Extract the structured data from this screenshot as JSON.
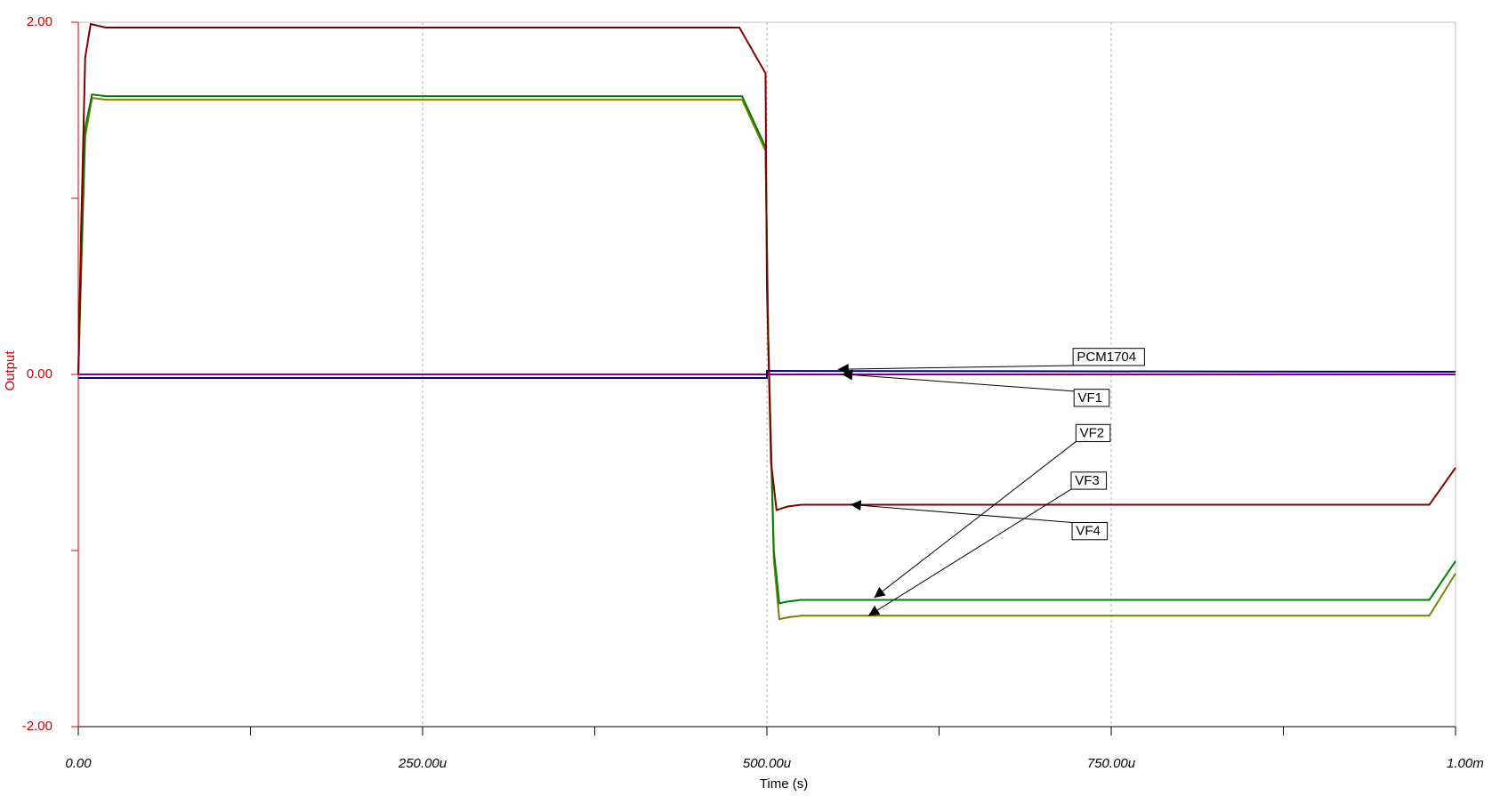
{
  "chart_data": {
    "type": "line",
    "xlabel": "Time (s)",
    "ylabel": "Output",
    "xlim": [
      0,
      0.001
    ],
    "xticks": [
      {
        "value": 0,
        "label": "0.00"
      },
      {
        "value": 0.00025,
        "label": "250.00u"
      },
      {
        "value": 0.0005,
        "label": "500.00u"
      },
      {
        "value": 0.00075,
        "label": "750.00u"
      },
      {
        "value": 0.001,
        "label": "1.00m"
      }
    ],
    "xminor": [
      0.000125,
      0.000375,
      0.000625,
      0.000875
    ],
    "ylim": [
      -2,
      2
    ],
    "yticks": [
      {
        "value": -2,
        "label": "-2.00"
      },
      {
        "value": 0,
        "label": "0.00"
      },
      {
        "value": 2,
        "label": "2.00"
      }
    ],
    "yminor": [
      -1,
      1
    ],
    "xgrid": true,
    "series": [
      {
        "name": "VF1",
        "color": "#800080",
        "x": [
          0,
          0.001
        ],
        "values": [
          0,
          0
        ]
      },
      {
        "name": "PCM1704",
        "color": "#000080",
        "x": [
          0,
          0.0005,
          0.0005,
          0.001
        ],
        "values": [
          -0.02,
          -0.02,
          0.02,
          0.015
        ]
      },
      {
        "name": "VF3",
        "color": "#808000",
        "x": [
          0,
          2e-06,
          5e-06,
          1e-05,
          2e-05,
          0.000482,
          0.000499,
          0.000501,
          0.000505,
          0.000509,
          0.000515,
          0.000525,
          0.000981,
          0.001
        ],
        "values": [
          0,
          0.55,
          1.35,
          1.57,
          1.56,
          1.56,
          1.27,
          0.2,
          -1.05,
          -1.39,
          -1.38,
          -1.37,
          -1.37,
          -1.13
        ]
      },
      {
        "name": "VF2",
        "color": "#008000",
        "x": [
          0,
          2e-06,
          5e-06,
          1e-05,
          2e-05,
          0.000482,
          0.000499,
          0.000501,
          0.000505,
          0.000509,
          0.000515,
          0.000525,
          0.000981,
          0.001
        ],
        "values": [
          0,
          0.6,
          1.4,
          1.59,
          1.58,
          1.58,
          1.29,
          0.2,
          -1.0,
          -1.3,
          -1.29,
          -1.28,
          -1.28,
          -1.06
        ]
      },
      {
        "name": "VF4",
        "color": "#800000",
        "x": [
          0,
          2e-06,
          5e-06,
          9e-06,
          2e-05,
          0.00048,
          0.000499,
          0.0005,
          0.000503,
          0.000507,
          0.000515,
          0.000525,
          0.000981,
          0.001
        ],
        "values": [
          0,
          0.8,
          1.8,
          1.99,
          1.97,
          1.97,
          1.71,
          0.5,
          -0.5,
          -0.77,
          -0.75,
          -0.74,
          -0.74,
          -0.53
        ]
      }
    ]
  }
}
